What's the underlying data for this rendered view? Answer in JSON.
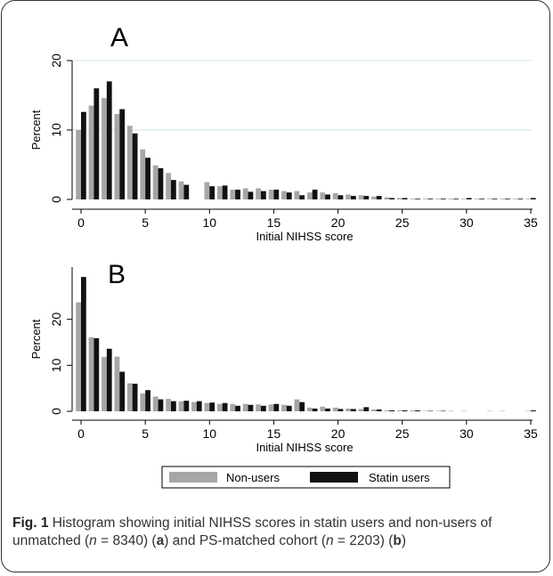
{
  "chart_data": [
    {
      "type": "bar",
      "panel_label": "A",
      "xlabel": "Initial NIHSS score",
      "ylabel": "Percent",
      "xlim": [
        0,
        35
      ],
      "ylim": [
        0,
        20
      ],
      "x_ticks": [
        0,
        5,
        10,
        15,
        20,
        25,
        30,
        35
      ],
      "y_ticks": [
        0,
        10,
        20
      ],
      "grid": true,
      "categories": [
        0,
        1,
        2,
        3,
        4,
        5,
        6,
        7,
        8,
        9,
        10,
        11,
        12,
        13,
        14,
        15,
        16,
        17,
        18,
        19,
        20,
        21,
        22,
        23,
        24,
        25,
        26,
        27,
        28,
        29,
        30,
        31,
        32,
        33,
        34,
        35
      ],
      "series": [
        {
          "name": "Non-users",
          "color": "#a6a6a6",
          "values": [
            10.0,
            13.5,
            14.6,
            12.3,
            10.6,
            7.2,
            4.9,
            3.8,
            2.6,
            0,
            2.5,
            1.9,
            1.4,
            1.6,
            1.6,
            1.4,
            1.2,
            1.2,
            1.0,
            1.0,
            0.9,
            0.7,
            0.6,
            0.4,
            0.3,
            0.2,
            0.1,
            0.1,
            0.1,
            0.1,
            0.1,
            0.1,
            0.1,
            0.1,
            0.1,
            0.1
          ]
        },
        {
          "name": "Statin users",
          "color": "#111111",
          "values": [
            12.6,
            16.0,
            17.0,
            13.0,
            9.5,
            6.0,
            4.5,
            2.8,
            2.1,
            0,
            1.9,
            2.0,
            1.4,
            1.1,
            1.2,
            1.4,
            1.0,
            0.6,
            1.4,
            0.7,
            0.6,
            0.5,
            0.5,
            0.5,
            0.2,
            0.2,
            0.1,
            0.1,
            0.1,
            0.1,
            0.2,
            0.1,
            0.1,
            0.1,
            0.1,
            0.2
          ]
        }
      ]
    },
    {
      "type": "bar",
      "panel_label": "B",
      "xlabel": "Initial NIHSS score",
      "ylabel": "Percent",
      "xlim": [
        0,
        35
      ],
      "ylim": [
        0,
        30
      ],
      "x_ticks": [
        0,
        5,
        10,
        15,
        20,
        25,
        30,
        35
      ],
      "y_ticks": [
        0,
        10,
        20
      ],
      "grid": false,
      "categories": [
        0,
        1,
        2,
        3,
        4,
        5,
        6,
        7,
        8,
        9,
        10,
        11,
        12,
        13,
        14,
        15,
        16,
        17,
        18,
        19,
        20,
        21,
        22,
        23,
        24,
        25,
        26,
        27,
        28,
        29,
        30,
        31,
        32,
        33,
        34,
        35
      ],
      "series": [
        {
          "name": "Non-users",
          "color": "#a6a6a6",
          "values": [
            23.7,
            16.1,
            11.8,
            11.9,
            6.1,
            3.9,
            3.2,
            2.7,
            2.2,
            2.0,
            1.8,
            1.6,
            1.6,
            1.6,
            1.5,
            1.5,
            1.4,
            2.6,
            0.8,
            1.0,
            0.8,
            0.6,
            0.5,
            0.4,
            0.2,
            0.2,
            0.2,
            0.1,
            0.1,
            0.1,
            0.1,
            0,
            0.1,
            0.1,
            0,
            0.1
          ]
        },
        {
          "name": "Statin users",
          "color": "#111111",
          "values": [
            29.2,
            15.9,
            13.6,
            8.6,
            6.0,
            4.6,
            2.6,
            2.2,
            2.3,
            2.2,
            1.9,
            1.8,
            1.2,
            1.4,
            1.2,
            1.6,
            1.2,
            2.0,
            0.6,
            0.6,
            0.5,
            0.5,
            0.9,
            0.4,
            0.2,
            0.2,
            0.2,
            0.1,
            0.1,
            0,
            0,
            0,
            0,
            0,
            0,
            0.2
          ]
        }
      ]
    }
  ],
  "legend": {
    "items": [
      {
        "label": "Non-users",
        "color": "#a6a6a6"
      },
      {
        "label": "Statin users",
        "color": "#111111"
      }
    ]
  },
  "caption": {
    "fig_label": "Fig. 1",
    "text_1": " Histogram showing initial NIHSS scores in statin users and non-users of unmatched (",
    "n1_var": "n",
    "n1_val": " = 8340) (",
    "a": "a",
    "text_2": ") and PS-matched cohort (",
    "n2_var": "n",
    "n2_val": " = 2203) (",
    "b": "b",
    "text_3": ")"
  }
}
